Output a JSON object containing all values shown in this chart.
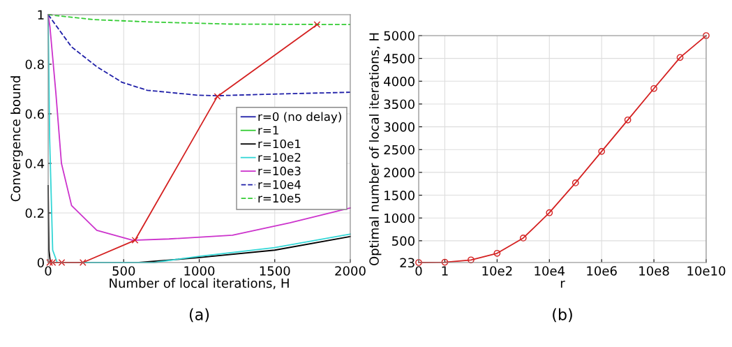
{
  "chart_data": [
    {
      "type": "line",
      "xlabel": "Number of local iterations, H",
      "ylabel": "Convergence bound",
      "xlim": [
        0,
        2000
      ],
      "ylim": [
        0,
        1
      ],
      "xticks": [
        0,
        500,
        1000,
        1500,
        2000
      ],
      "yticks": [
        0,
        0.2,
        0.4,
        0.6,
        0.8,
        1
      ],
      "grid": true,
      "legend": "right",
      "annotations": [
        "(a)"
      ],
      "series": [
        {
          "name": "r=0 (no delay)",
          "color": "#1f1fa8",
          "line_style": "solid"
        },
        {
          "name": "r=1",
          "color": "#33cc33",
          "line_style": "solid"
        },
        {
          "name": "r=10e1",
          "color": "#000000",
          "line_style": "solid",
          "x": [
            0,
            5,
            15,
            600,
            1000,
            1500,
            2000
          ],
          "values": [
            0.31,
            0.05,
            0,
            0,
            0.02,
            0.05,
            0.105
          ]
        },
        {
          "name": "r=10e2",
          "color": "#33d6d6",
          "line_style": "solid",
          "x": [
            0,
            10,
            30,
            60,
            700,
            1000,
            1500,
            2000
          ],
          "values": [
            1,
            0.5,
            0.05,
            0,
            0,
            0.025,
            0.06,
            0.115
          ]
        },
        {
          "name": "r=10e3",
          "color": "#cc33cc",
          "line_style": "solid",
          "x": [
            0,
            12,
            51,
            88,
            155,
            322,
            560,
            800,
            1220,
            1600,
            2000
          ],
          "values": [
            1,
            0.95,
            0.685,
            0.4,
            0.23,
            0.13,
            0.09,
            0.095,
            0.11,
            0.16,
            0.22
          ]
        },
        {
          "name": "r=10e4",
          "color": "#1f1fa8",
          "line_style": "dashed",
          "x": [
            0,
            155,
            322,
            489,
            656,
            990,
            1115,
            1530,
            2000
          ],
          "values": [
            1,
            0.87,
            0.79,
            0.727,
            0.695,
            0.675,
            0.673,
            0.68,
            0.687
          ]
        },
        {
          "name": "r=10e5",
          "color": "#33cc33",
          "line_style": "dashed",
          "x": [
            0,
            300,
            700,
            1200,
            2000
          ],
          "values": [
            1,
            0.98,
            0.97,
            0.962,
            0.96
          ]
        },
        {
          "color": "#d42020",
          "line_style": "solid",
          "marker": "cross",
          "x": [
            10,
            30,
            90,
            230,
            575,
            1120,
            1780
          ],
          "values": [
            0,
            0,
            0,
            0,
            0.09,
            0.67,
            0.96
          ]
        }
      ]
    },
    {
      "type": "line",
      "xlabel": "r",
      "ylabel": "Optimal number of local iterations, H",
      "categories": [
        "0",
        "1",
        null,
        "10e2",
        null,
        "10e4",
        null,
        "10e6",
        null,
        "10e8",
        null,
        "10e10"
      ],
      "ylim": [
        23,
        5000
      ],
      "yticks": [
        23,
        500,
        1000,
        1500,
        2000,
        2500,
        3000,
        3500,
        4000,
        4500,
        5000
      ],
      "grid": true,
      "legend": false,
      "annotations": [
        "(b)"
      ],
      "series": [
        {
          "color": "#d42020",
          "line_style": "solid",
          "marker": "circle",
          "values": [
            23,
            30,
            80,
            225,
            560,
            1115,
            1770,
            2460,
            3150,
            3840,
            4520,
            5000
          ]
        }
      ]
    }
  ]
}
